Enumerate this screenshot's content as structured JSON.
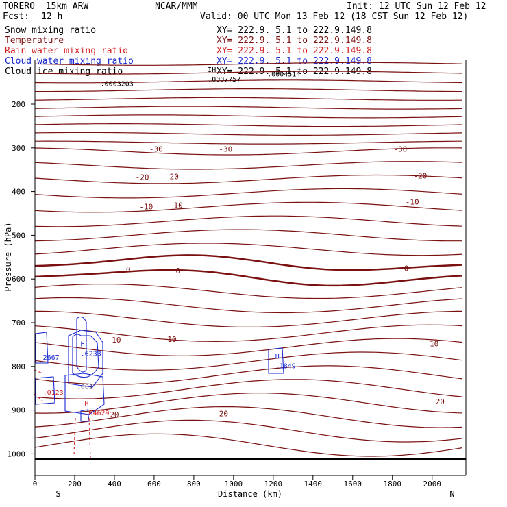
{
  "header": {
    "model": "TORERO  15km ARW",
    "center": "NCAR/MMM",
    "init": "Init: 12 UTC Sun 12 Feb 12",
    "fcst_label": "Fcst:",
    "fcst_value": "12 h",
    "valid": "Valid: 00 UTC Mon 13 Feb 12 (18 CST Sun 12 Feb 12)"
  },
  "colors": {
    "temperature": "#7a1010",
    "rain": "#d42020",
    "cloud_water": "#1a2ad0",
    "ground": "#000000"
  },
  "chart_data": {
    "type": "cross-section contour",
    "xlabel": "Distance (km)",
    "ylabel": "Pressure (hPa)",
    "xlim": [
      0,
      2170
    ],
    "ylim": [
      1050,
      100
    ],
    "x_ticks": [
      "0",
      "200",
      "400",
      "600",
      "800",
      "1000",
      "1200",
      "1400",
      "1600",
      "1800",
      "2000"
    ],
    "y_ticks": [
      "200",
      "300",
      "400",
      "500",
      "600",
      "700",
      "800",
      "900",
      "1000"
    ],
    "end_labels": {
      "left": "S",
      "right": "N"
    },
    "fields": [
      {
        "name": "Snow mixing ratio",
        "color": "#000000",
        "xy": "XY= 222.9.  5.1 to 222.9.149.8"
      },
      {
        "name": "Temperature",
        "color": "#7a1010",
        "xy": "XY= 222.9.  5.1 to 222.9.149.8"
      },
      {
        "name": "Rain water mixing ratio",
        "color": "#d42020",
        "xy": "XY= 222.9.  5.1 to 222.9.149.8"
      },
      {
        "name": "Cloud water mixing ratio",
        "color": "#1a2ad0",
        "xy": "XY= 222.9.  5.1 to 222.9.149.8"
      },
      {
        "name": "Cloud ice mixing ratio",
        "color": "#000000",
        "xy": "XY= 222.9.  5.1 to 222.9.149.8"
      }
    ],
    "temperature_contour_labels": [
      {
        "text": "-30",
        "x": 610,
        "p": 303
      },
      {
        "text": "-30",
        "x": 960,
        "p": 303
      },
      {
        "text": "-30",
        "x": 1840,
        "p": 303
      },
      {
        "text": "-20",
        "x": 540,
        "p": 367
      },
      {
        "text": "-20",
        "x": 690,
        "p": 365
      },
      {
        "text": "-20",
        "x": 1940,
        "p": 364
      },
      {
        "text": "-10",
        "x": 560,
        "p": 434
      },
      {
        "text": "-10",
        "x": 710,
        "p": 431
      },
      {
        "text": "-10",
        "x": 1900,
        "p": 423
      },
      {
        "text": "0",
        "x": 470,
        "p": 578
      },
      {
        "text": "0",
        "x": 720,
        "p": 581
      },
      {
        "text": "0",
        "x": 1870,
        "p": 575
      },
      {
        "text": "10",
        "x": 410,
        "p": 739
      },
      {
        "text": "10",
        "x": 690,
        "p": 738
      },
      {
        "text": "10",
        "x": 2010,
        "p": 748
      },
      {
        "text": "20",
        "x": 400,
        "p": 910
      },
      {
        "text": "20",
        "x": 950,
        "p": 908
      },
      {
        "text": "20",
        "x": 2040,
        "p": 880
      }
    ],
    "extrema_labels": [
      {
        "mark": "H",
        "value": ".6233",
        "x": 230,
        "p": 770,
        "field": "cloud_water"
      },
      {
        "mark": "",
        "value": "2667",
        "x": 40,
        "p": 778,
        "field": "cloud_water"
      },
      {
        "mark": "H",
        "value": ".1849",
        "x": 1210,
        "p": 798,
        "field": "cloud_water"
      },
      {
        "mark": "H",
        "value": ".04629",
        "x": 250,
        "p": 905,
        "field": "rain"
      },
      {
        "mark": "",
        "value": ".0123",
        "x": 40,
        "p": 858,
        "field": "rain"
      },
      {
        "mark": "",
        "value": ".001",
        "x": 210,
        "p": 845,
        "field": "snow"
      },
      {
        "mark": "",
        "value": ".0003203",
        "x": 330,
        "p": 152,
        "field": "ice"
      },
      {
        "mark": "IH",
        "value": ".0007757",
        "x": 870,
        "p": 142,
        "field": "ice"
      },
      {
        "mark": "",
        "value": ".0004514",
        "x": 1170,
        "p": 130,
        "field": "ice"
      }
    ]
  }
}
